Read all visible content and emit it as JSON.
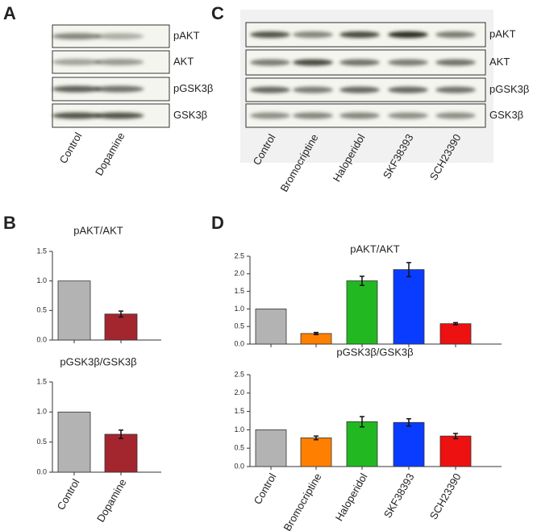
{
  "panel_labels": [
    "A",
    "B",
    "C",
    "D"
  ],
  "blots": [
    {
      "rows": [
        "pAKT",
        "AKT",
        "pGSK3β",
        "GSK3β"
      ],
      "lanes": [
        "Control",
        "Dopamine"
      ]
    },
    {
      "rows": [
        "pAKT",
        "AKT",
        "pGSK3β",
        "GSK3β"
      ],
      "lanes": [
        "Control",
        "Bromocriptine",
        "Haloperidol",
        "SKF38393",
        "SCH23390"
      ]
    }
  ],
  "chart_data": [
    {
      "type": "bar",
      "title": "pAKT/AKT",
      "categories": [
        null,
        null
      ],
      "values": [
        1.0,
        0.44
      ],
      "errors": [
        0,
        0.05
      ],
      "colors": [
        "#b3b3b3",
        "#a3262f"
      ],
      "ylim": [
        0,
        1.5
      ],
      "yticks": [
        {
          "value": 0,
          "label": "0.0"
        },
        0.5,
        {
          "value": 1,
          "label": "1.0"
        },
        1.5
      ]
    },
    {
      "type": "bar",
      "title": "pGSK3β/GSK3β",
      "categories": [
        "Control",
        "Dopamine"
      ],
      "values": [
        1.0,
        0.63
      ],
      "errors": [
        0,
        0.07
      ],
      "colors": [
        "#b3b3b3",
        "#a3262f"
      ],
      "ylim": [
        0,
        1.5
      ],
      "yticks": [
        {
          "value": 0,
          "label": "0.0"
        },
        0.5,
        {
          "value": 1,
          "label": "1.0"
        },
        1.5
      ]
    },
    {
      "type": "bar",
      "title": "pAKT/AKT",
      "categories": [
        null,
        null,
        null,
        null,
        null
      ],
      "values": [
        1.0,
        0.3,
        1.8,
        2.12,
        0.58
      ],
      "errors": [
        0,
        0.03,
        0.13,
        0.2,
        0.03
      ],
      "colors": [
        "#b3b3b3",
        "#ff8000",
        "#22b822",
        "#0a3cff",
        "#ee1111"
      ],
      "ylim": [
        0,
        2.5
      ],
      "yticks": [
        {
          "value": 0,
          "label": "0.0"
        },
        0.5,
        {
          "value": 1,
          "label": "1.0"
        },
        1.5,
        {
          "value": 2,
          "label": "2.0"
        },
        2.5
      ]
    },
    {
      "type": "bar",
      "title": "pGSK3β/GSK3β",
      "categories": [
        "Control",
        "Bromocriptine",
        "Haloperidol",
        "SKF38393",
        "SCH23390"
      ],
      "values": [
        1.0,
        0.78,
        1.22,
        1.2,
        0.83
      ],
      "errors": [
        0,
        0.05,
        0.14,
        0.1,
        0.07
      ],
      "colors": [
        "#b3b3b3",
        "#ff8000",
        "#22b822",
        "#0a3cff",
        "#ee1111"
      ],
      "ylim": [
        0,
        2.5
      ],
      "yticks": [
        {
          "value": 0,
          "label": "0.0"
        },
        0.5,
        {
          "value": 1,
          "label": "1.0"
        },
        1.5,
        {
          "value": 2,
          "label": "2.0"
        },
        2.5
      ]
    }
  ]
}
